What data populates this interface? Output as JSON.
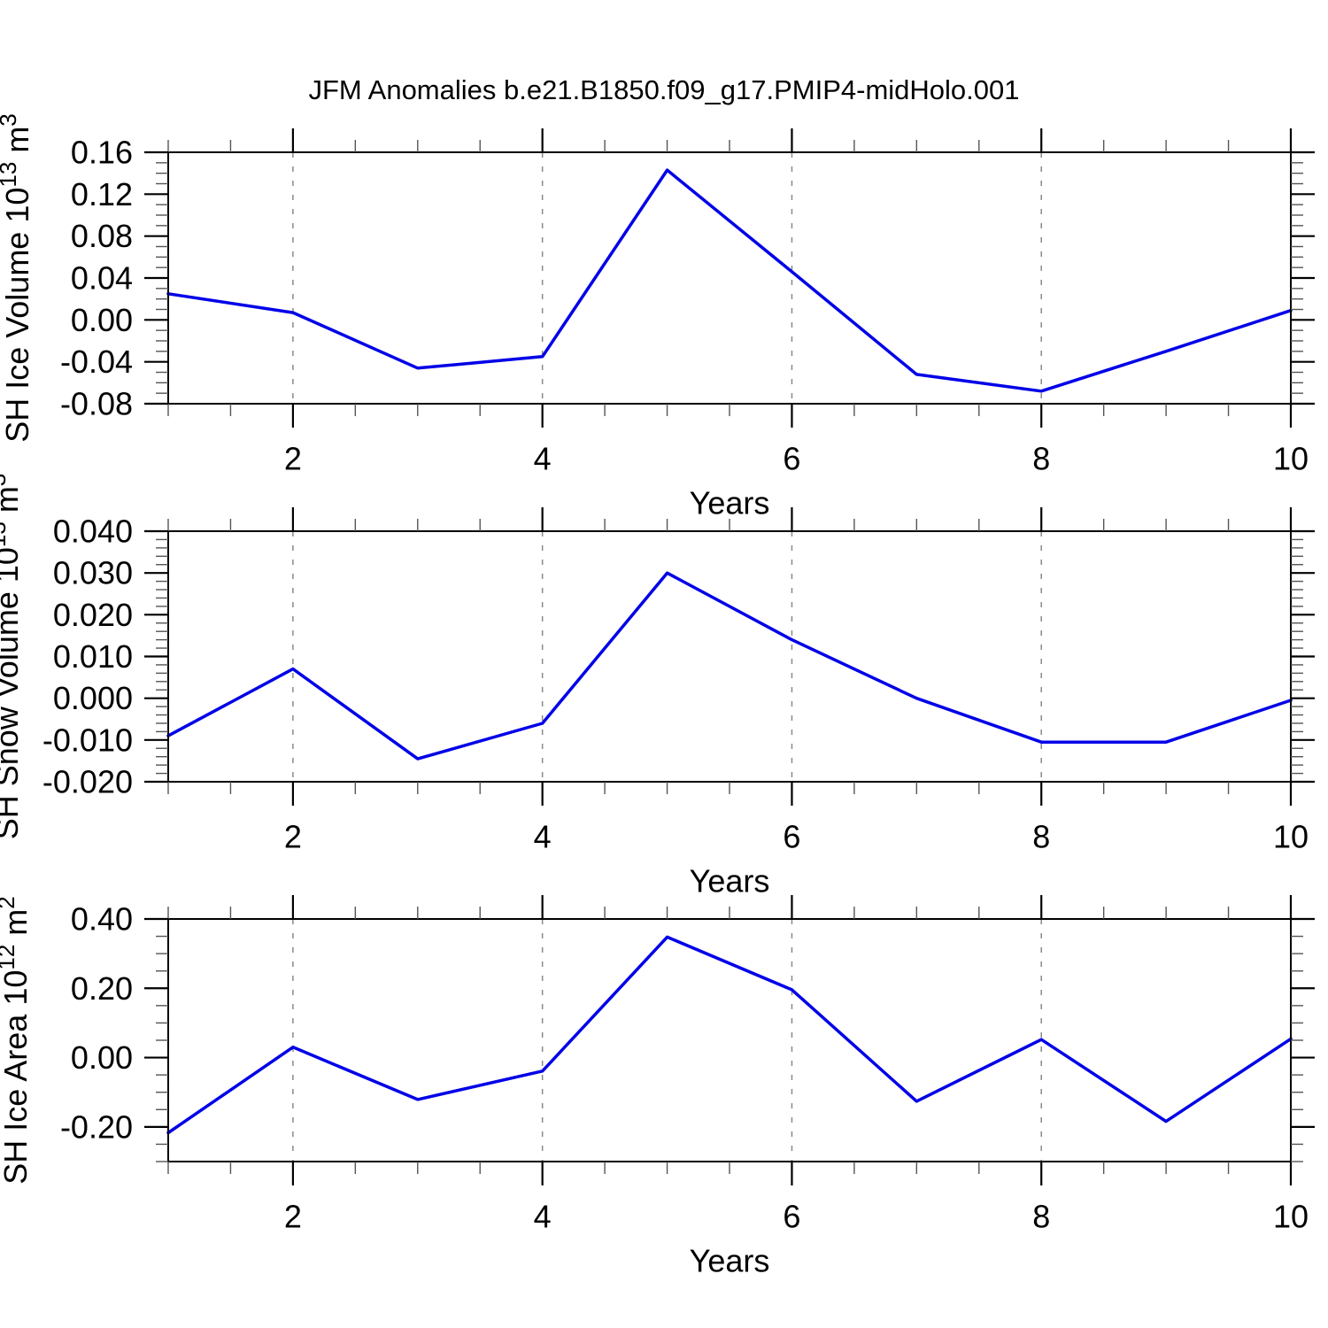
{
  "page": {
    "title": "JFM Anomalies b.e21.B1850.f09_g17.PMIP4-midHolo.001"
  },
  "style": {
    "line_color": "#0000e8",
    "axis_color": "#000000",
    "grid_color": "#8a8a8a",
    "minor_tick_color": "#555555",
    "text_color": "#000000",
    "background": "#ffffff"
  },
  "chart_data": [
    {
      "id": "sh-ice-volume",
      "type": "line",
      "xlabel": "Years",
      "ylabel_parts": [
        {
          "t": "SH Ice Volume 10"
        },
        {
          "t": "13",
          "sup": true
        },
        {
          "t": " m"
        },
        {
          "t": "3",
          "sup": true
        }
      ],
      "x": [
        1,
        2,
        3,
        4,
        5,
        6,
        7,
        8,
        9,
        10
      ],
      "values": [
        0.025,
        0.007,
        -0.046,
        -0.035,
        0.143,
        0.046,
        -0.052,
        -0.068,
        -0.03,
        0.009
      ],
      "xlim": [
        1,
        10
      ],
      "ylim": [
        -0.08,
        0.16
      ],
      "xticks": {
        "major": [
          2,
          4,
          6,
          8,
          10
        ],
        "labels": [
          "2",
          "4",
          "6",
          "8",
          "10"
        ],
        "minor_step": 0.5
      },
      "yticks": {
        "major_values": [
          0.16,
          0.12,
          0.08,
          0.04,
          0.0,
          -0.04,
          -0.08
        ],
        "labels": [
          "0.16",
          "0.12",
          "0.08",
          "0.04",
          "0.00",
          "-0.04",
          "-0.08"
        ],
        "minor_step": 0.01
      },
      "grid_x": [
        2,
        4,
        6,
        8
      ],
      "grid_style": "vertical-dashed"
    },
    {
      "id": "sh-snow-volume",
      "type": "line",
      "xlabel": "Years",
      "ylabel_parts": [
        {
          "t": "SH Snow Volume 10"
        },
        {
          "t": "13",
          "sup": true
        },
        {
          "t": " m"
        },
        {
          "t": "3",
          "sup": true
        }
      ],
      "x": [
        1,
        2,
        3,
        4,
        5,
        6,
        7,
        8,
        9,
        10
      ],
      "values": [
        -0.009,
        0.007,
        -0.0145,
        -0.006,
        0.03,
        0.014,
        0.0,
        -0.0105,
        -0.0105,
        -0.0005
      ],
      "xlim": [
        1,
        10
      ],
      "ylim": [
        -0.02,
        0.04
      ],
      "xticks": {
        "major": [
          2,
          4,
          6,
          8,
          10
        ],
        "labels": [
          "2",
          "4",
          "6",
          "8",
          "10"
        ],
        "minor_step": 0.5
      },
      "yticks": {
        "major_values": [
          0.04,
          0.03,
          0.02,
          0.01,
          0.0,
          -0.01,
          -0.02
        ],
        "labels": [
          "0.040",
          "0.030",
          "0.020",
          "0.010",
          "0.000",
          "-0.010",
          "-0.020"
        ],
        "minor_step": 0.002
      },
      "grid_x": [
        2,
        4,
        6,
        8
      ],
      "grid_style": "vertical-dashed"
    },
    {
      "id": "sh-ice-area",
      "type": "line",
      "xlabel": "Years",
      "ylabel_parts": [
        {
          "t": "SH Ice Area 10"
        },
        {
          "t": "12",
          "sup": true
        },
        {
          "t": " m"
        },
        {
          "t": "2",
          "sup": true
        }
      ],
      "x": [
        1,
        2,
        3,
        4,
        5,
        6,
        7,
        8,
        9,
        10
      ],
      "values": [
        -0.217,
        0.03,
        -0.121,
        -0.039,
        0.348,
        0.196,
        -0.126,
        0.052,
        -0.184,
        0.054
      ],
      "xlim": [
        1,
        10
      ],
      "ylim": [
        -0.3,
        0.4
      ],
      "xticks": {
        "major": [
          2,
          4,
          6,
          8,
          10
        ],
        "labels": [
          "2",
          "4",
          "6",
          "8",
          "10"
        ],
        "minor_step": 0.5
      },
      "yticks": {
        "major_values": [
          0.4,
          0.2,
          0.0,
          -0.2
        ],
        "labels": [
          "0.40",
          "0.20",
          "0.00",
          "-0.20"
        ],
        "minor_step": 0.05
      },
      "grid_x": [
        2,
        4,
        6,
        8
      ],
      "grid_style": "vertical-dashed"
    }
  ]
}
